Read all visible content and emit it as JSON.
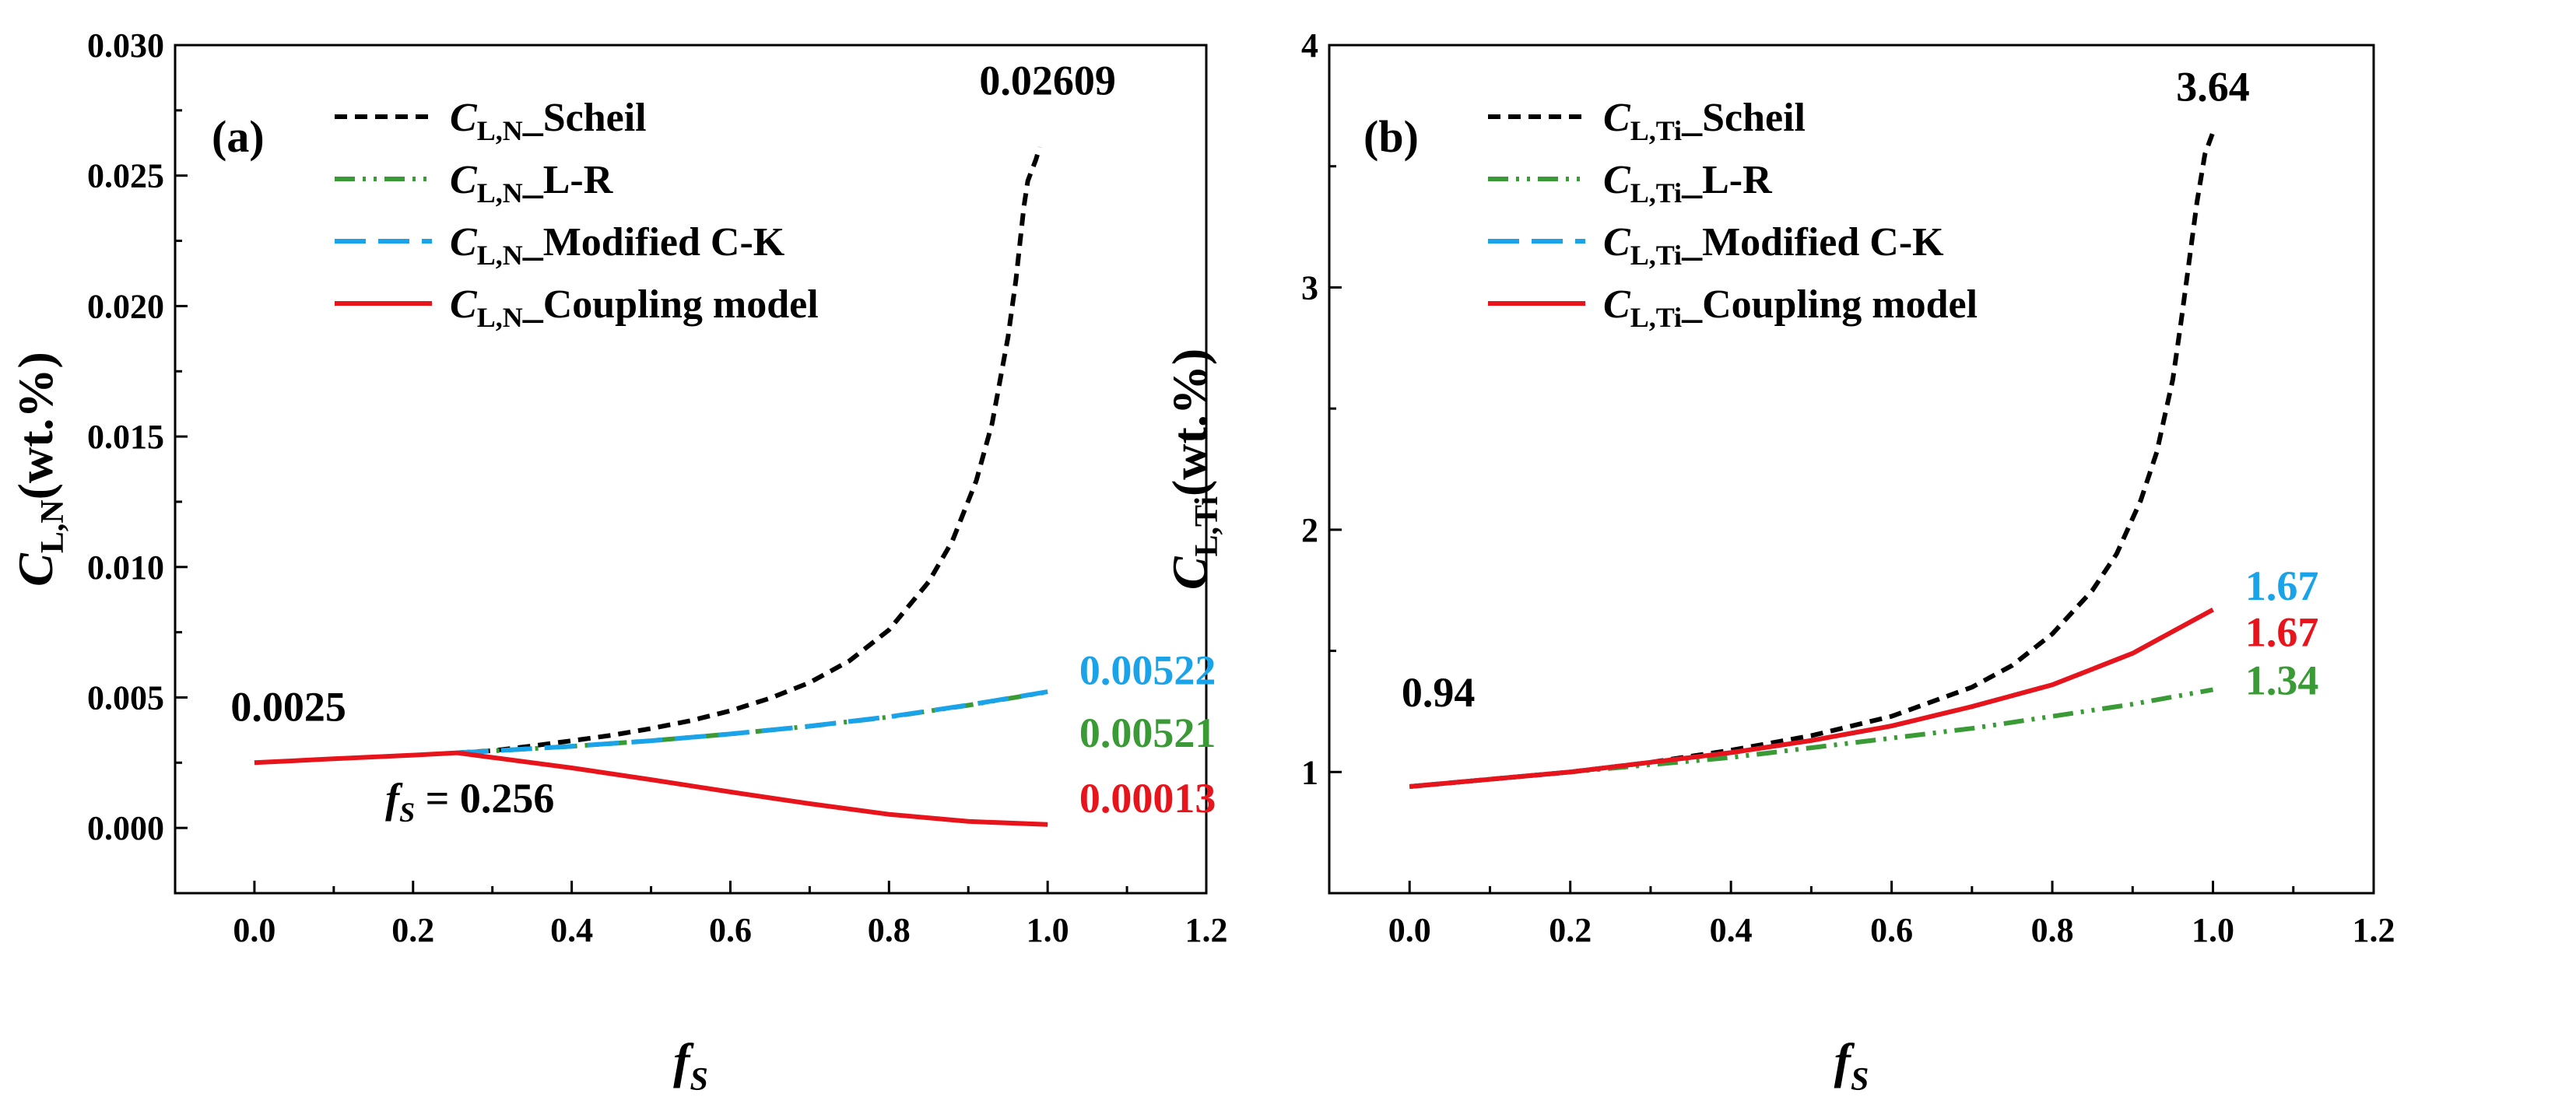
{
  "chart_data": [
    {
      "type": "line",
      "panel_label": "(a)",
      "xlabel": {
        "main": "f",
        "sub": "S"
      },
      "ylabel": {
        "main": "C",
        "sub": "L,N",
        "suffix": "(wt.%)"
      },
      "xlim": [
        -0.1,
        1.2
      ],
      "ylim": [
        -0.0025,
        0.03
      ],
      "x_ticks": [
        "0.0",
        "0.2",
        "0.4",
        "0.6",
        "0.8",
        "1.0",
        "1.2"
      ],
      "y_ticks": [
        "0.000",
        "0.005",
        "0.010",
        "0.015",
        "0.020",
        "0.025",
        "0.030"
      ],
      "series": [
        {
          "name": "Scheil",
          "legend_sub": "L,N",
          "legend_label": "_Scheil",
          "color": "#000000",
          "style": "short-dash",
          "x": [
            0.256,
            0.3,
            0.35,
            0.4,
            0.45,
            0.5,
            0.55,
            0.6,
            0.65,
            0.7,
            0.75,
            0.8,
            0.85,
            0.88,
            0.91,
            0.93,
            0.95,
            0.96,
            0.97,
            0.975,
            0.98,
            0.985,
            0.99
          ],
          "y": [
            0.00288,
            0.00296,
            0.00314,
            0.00334,
            0.00355,
            0.00381,
            0.00411,
            0.00449,
            0.00497,
            0.00557,
            0.0064,
            0.00759,
            0.00943,
            0.011,
            0.0133,
            0.0155,
            0.0188,
            0.021,
            0.0238,
            0.0248,
            0.0252,
            0.0256,
            0.02609
          ]
        },
        {
          "name": "L-R",
          "legend_sub": "L,N",
          "legend_label": "_L-R",
          "color": "#3a9a36",
          "style": "dash-dot-dot",
          "x": [
            0.256,
            0.3,
            0.4,
            0.5,
            0.6,
            0.7,
            0.8,
            0.9,
            1.0
          ],
          "y": [
            0.00288,
            0.00295,
            0.00313,
            0.00334,
            0.0036,
            0.0039,
            0.00425,
            0.0047,
            0.00521
          ]
        },
        {
          "name": "Modified C-K",
          "legend_sub": "L,N",
          "legend_label": "_Modified C-K",
          "color": "#1aa3e8",
          "style": "long-dash",
          "x": [
            0.256,
            0.3,
            0.4,
            0.5,
            0.6,
            0.7,
            0.8,
            0.9,
            1.0
          ],
          "y": [
            0.00288,
            0.00295,
            0.00313,
            0.00334,
            0.0036,
            0.0039,
            0.00426,
            0.00471,
            0.00522
          ]
        },
        {
          "name": "Coupling model",
          "legend_sub": "L,N",
          "legend_label": "_Coupling model",
          "color": "#e8141c",
          "style": "solid",
          "x": [
            0.0,
            0.1,
            0.2,
            0.256,
            0.3,
            0.4,
            0.5,
            0.6,
            0.7,
            0.8,
            0.9,
            1.0
          ],
          "y": [
            0.0025,
            0.00265,
            0.00279,
            0.00288,
            0.0027,
            0.0023,
            0.00185,
            0.00138,
            0.00093,
            0.00052,
            0.00025,
            0.00013
          ]
        }
      ],
      "annotations": [
        {
          "text": "0.02609",
          "color": "#000000",
          "x": 1.0,
          "y": 0.0281,
          "anchor": "middle"
        },
        {
          "text": "0.00522",
          "color": "#1aa3e8",
          "x": 1.04,
          "y": 0.0055,
          "anchor": "start"
        },
        {
          "text": "0.00521",
          "color": "#3a9a36",
          "x": 1.04,
          "y": 0.0031,
          "anchor": "start"
        },
        {
          "text": "0.00013",
          "color": "#e8141c",
          "x": 1.04,
          "y": 0.0006,
          "anchor": "start"
        },
        {
          "text": "0.0025",
          "color": "#000000",
          "x": -0.03,
          "y": 0.0041,
          "anchor": "start"
        }
      ],
      "point_annotation": {
        "lhs_main": "f",
        "lhs_sub": "S",
        "rhs": " = 0.256",
        "x": 0.165,
        "y": 0.0006
      }
    },
    {
      "type": "line",
      "panel_label": "(b)",
      "xlabel": {
        "main": "f",
        "sub": "S"
      },
      "ylabel": {
        "main": "C",
        "sub": "L,Ti",
        "suffix": "(wt.%)"
      },
      "xlim": [
        -0.1,
        1.2
      ],
      "ylim": [
        0.5,
        4.0
      ],
      "x_ticks": [
        "0.0",
        "0.2",
        "0.4",
        "0.6",
        "0.8",
        "1.0",
        "1.2"
      ],
      "y_ticks": [
        "1",
        "2",
        "3",
        "4"
      ],
      "series": [
        {
          "name": "Scheil",
          "legend_sub": "L,Ti",
          "legend_label": "_Scheil",
          "color": "#000000",
          "style": "short-dash",
          "x": [
            0.0,
            0.1,
            0.2,
            0.3,
            0.4,
            0.5,
            0.6,
            0.7,
            0.75,
            0.8,
            0.85,
            0.88,
            0.91,
            0.93,
            0.95,
            0.96,
            0.97,
            0.98,
            0.99,
            1.0
          ],
          "y": [
            0.94,
            0.97,
            1.0,
            1.04,
            1.09,
            1.15,
            1.23,
            1.35,
            1.44,
            1.57,
            1.75,
            1.9,
            2.12,
            2.32,
            2.62,
            2.85,
            3.1,
            3.35,
            3.55,
            3.64
          ]
        },
        {
          "name": "L-R",
          "legend_sub": "L,Ti",
          "legend_label": "_L-R",
          "color": "#3a9a36",
          "style": "dash-dot-dot",
          "x": [
            0.0,
            0.1,
            0.2,
            0.3,
            0.4,
            0.5,
            0.6,
            0.7,
            0.8,
            0.9,
            1.0
          ],
          "y": [
            0.94,
            0.97,
            1.0,
            1.03,
            1.06,
            1.1,
            1.14,
            1.18,
            1.23,
            1.28,
            1.34
          ]
        },
        {
          "name": "Modified C-K",
          "legend_sub": "L,Ti",
          "legend_label": "_Modified C-K",
          "color": "#1aa3e8",
          "style": "long-dash",
          "x": [
            0.0,
            0.1,
            0.2,
            0.3,
            0.4,
            0.5,
            0.6,
            0.7,
            0.8,
            0.9,
            1.0
          ],
          "y": [
            0.94,
            0.97,
            1.0,
            1.04,
            1.08,
            1.13,
            1.19,
            1.27,
            1.36,
            1.49,
            1.67
          ]
        },
        {
          "name": "Coupling model",
          "legend_sub": "L,Ti",
          "legend_label": "_Coupling model",
          "color": "#e8141c",
          "style": "solid",
          "x": [
            0.0,
            0.1,
            0.2,
            0.3,
            0.4,
            0.5,
            0.6,
            0.7,
            0.8,
            0.9,
            1.0
          ],
          "y": [
            0.94,
            0.97,
            1.0,
            1.04,
            1.08,
            1.13,
            1.19,
            1.27,
            1.36,
            1.49,
            1.67
          ]
        }
      ],
      "annotations": [
        {
          "text": "3.64",
          "color": "#000000",
          "x": 1.0,
          "y": 3.77,
          "anchor": "middle"
        },
        {
          "text": "1.67",
          "color": "#1aa3e8",
          "x": 1.04,
          "y": 1.71,
          "anchor": "start"
        },
        {
          "text": "1.67",
          "color": "#e8141c",
          "x": 1.04,
          "y": 1.52,
          "anchor": "start"
        },
        {
          "text": "1.34",
          "color": "#3a9a36",
          "x": 1.04,
          "y": 1.32,
          "anchor": "start"
        },
        {
          "text": "0.94",
          "color": "#000000",
          "x": -0.01,
          "y": 1.27,
          "anchor": "start"
        }
      ]
    }
  ]
}
